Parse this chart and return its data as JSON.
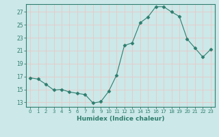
{
  "x": [
    0,
    1,
    2,
    3,
    4,
    5,
    6,
    7,
    8,
    9,
    10,
    11,
    12,
    13,
    14,
    15,
    16,
    17,
    18,
    19,
    20,
    21,
    22,
    23
  ],
  "y": [
    16.8,
    16.6,
    15.8,
    14.9,
    15.0,
    14.6,
    14.4,
    14.2,
    12.9,
    13.1,
    14.7,
    17.2,
    21.8,
    22.2,
    25.3,
    26.2,
    27.8,
    27.8,
    27.0,
    26.3,
    22.8,
    21.4,
    20.0,
    21.2
  ],
  "line_color": "#2e7d6e",
  "marker": "D",
  "marker_size": 2.5,
  "bg_color": "#cce8e8",
  "grid_color": "#e8c8c8",
  "xlabel": "Humidex (Indice chaleur)",
  "yticks": [
    13,
    15,
    17,
    19,
    21,
    23,
    25,
    27
  ],
  "xticks": [
    0,
    1,
    2,
    3,
    4,
    5,
    6,
    7,
    8,
    9,
    10,
    11,
    12,
    13,
    14,
    15,
    16,
    17,
    18,
    19,
    20,
    21,
    22,
    23
  ],
  "ylim": [
    12.3,
    28.2
  ],
  "xlim": [
    -0.5,
    23.5
  ]
}
